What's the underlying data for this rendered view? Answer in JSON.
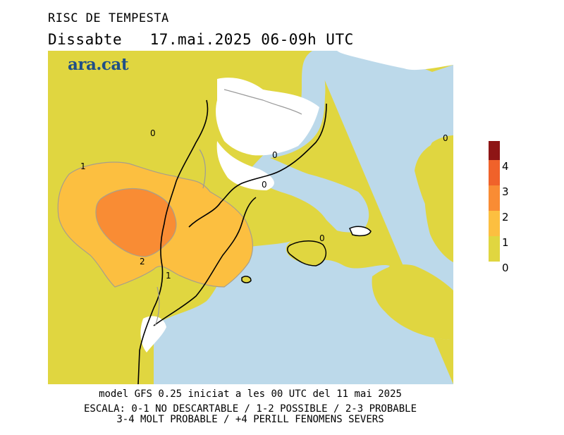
{
  "header": {
    "title": "RISC DE TEMPESTA",
    "day": "Dissabte",
    "date_range": "17.mai.2025 06-09h UTC",
    "logo": "ara.cat"
  },
  "map": {
    "contour_labels": [
      "0",
      "0",
      "0",
      "0",
      "0",
      "1",
      "2",
      "1"
    ],
    "colors": {
      "sea": "#bcd9ea",
      "level_0": "#e0d640",
      "level_1": "#fcbf40",
      "level_2": "#f98c34",
      "level_3": "#f0622a",
      "level_4": "#8e1515",
      "land_white": "#ffffff"
    }
  },
  "legend": {
    "labels": [
      "4",
      "3",
      "2",
      "1",
      "0"
    ]
  },
  "footer": {
    "line1": "model GFS 0.25 iniciat a les 00 UTC del 11 mai 2025",
    "line2": "ESCALA: 0-1 NO DESCARTABLE / 1-2 POSSIBLE / 2-3 PROBABLE",
    "line3": "3-4 MOLT PROBABLE / +4 PERILL FENOMENS SEVERS"
  }
}
